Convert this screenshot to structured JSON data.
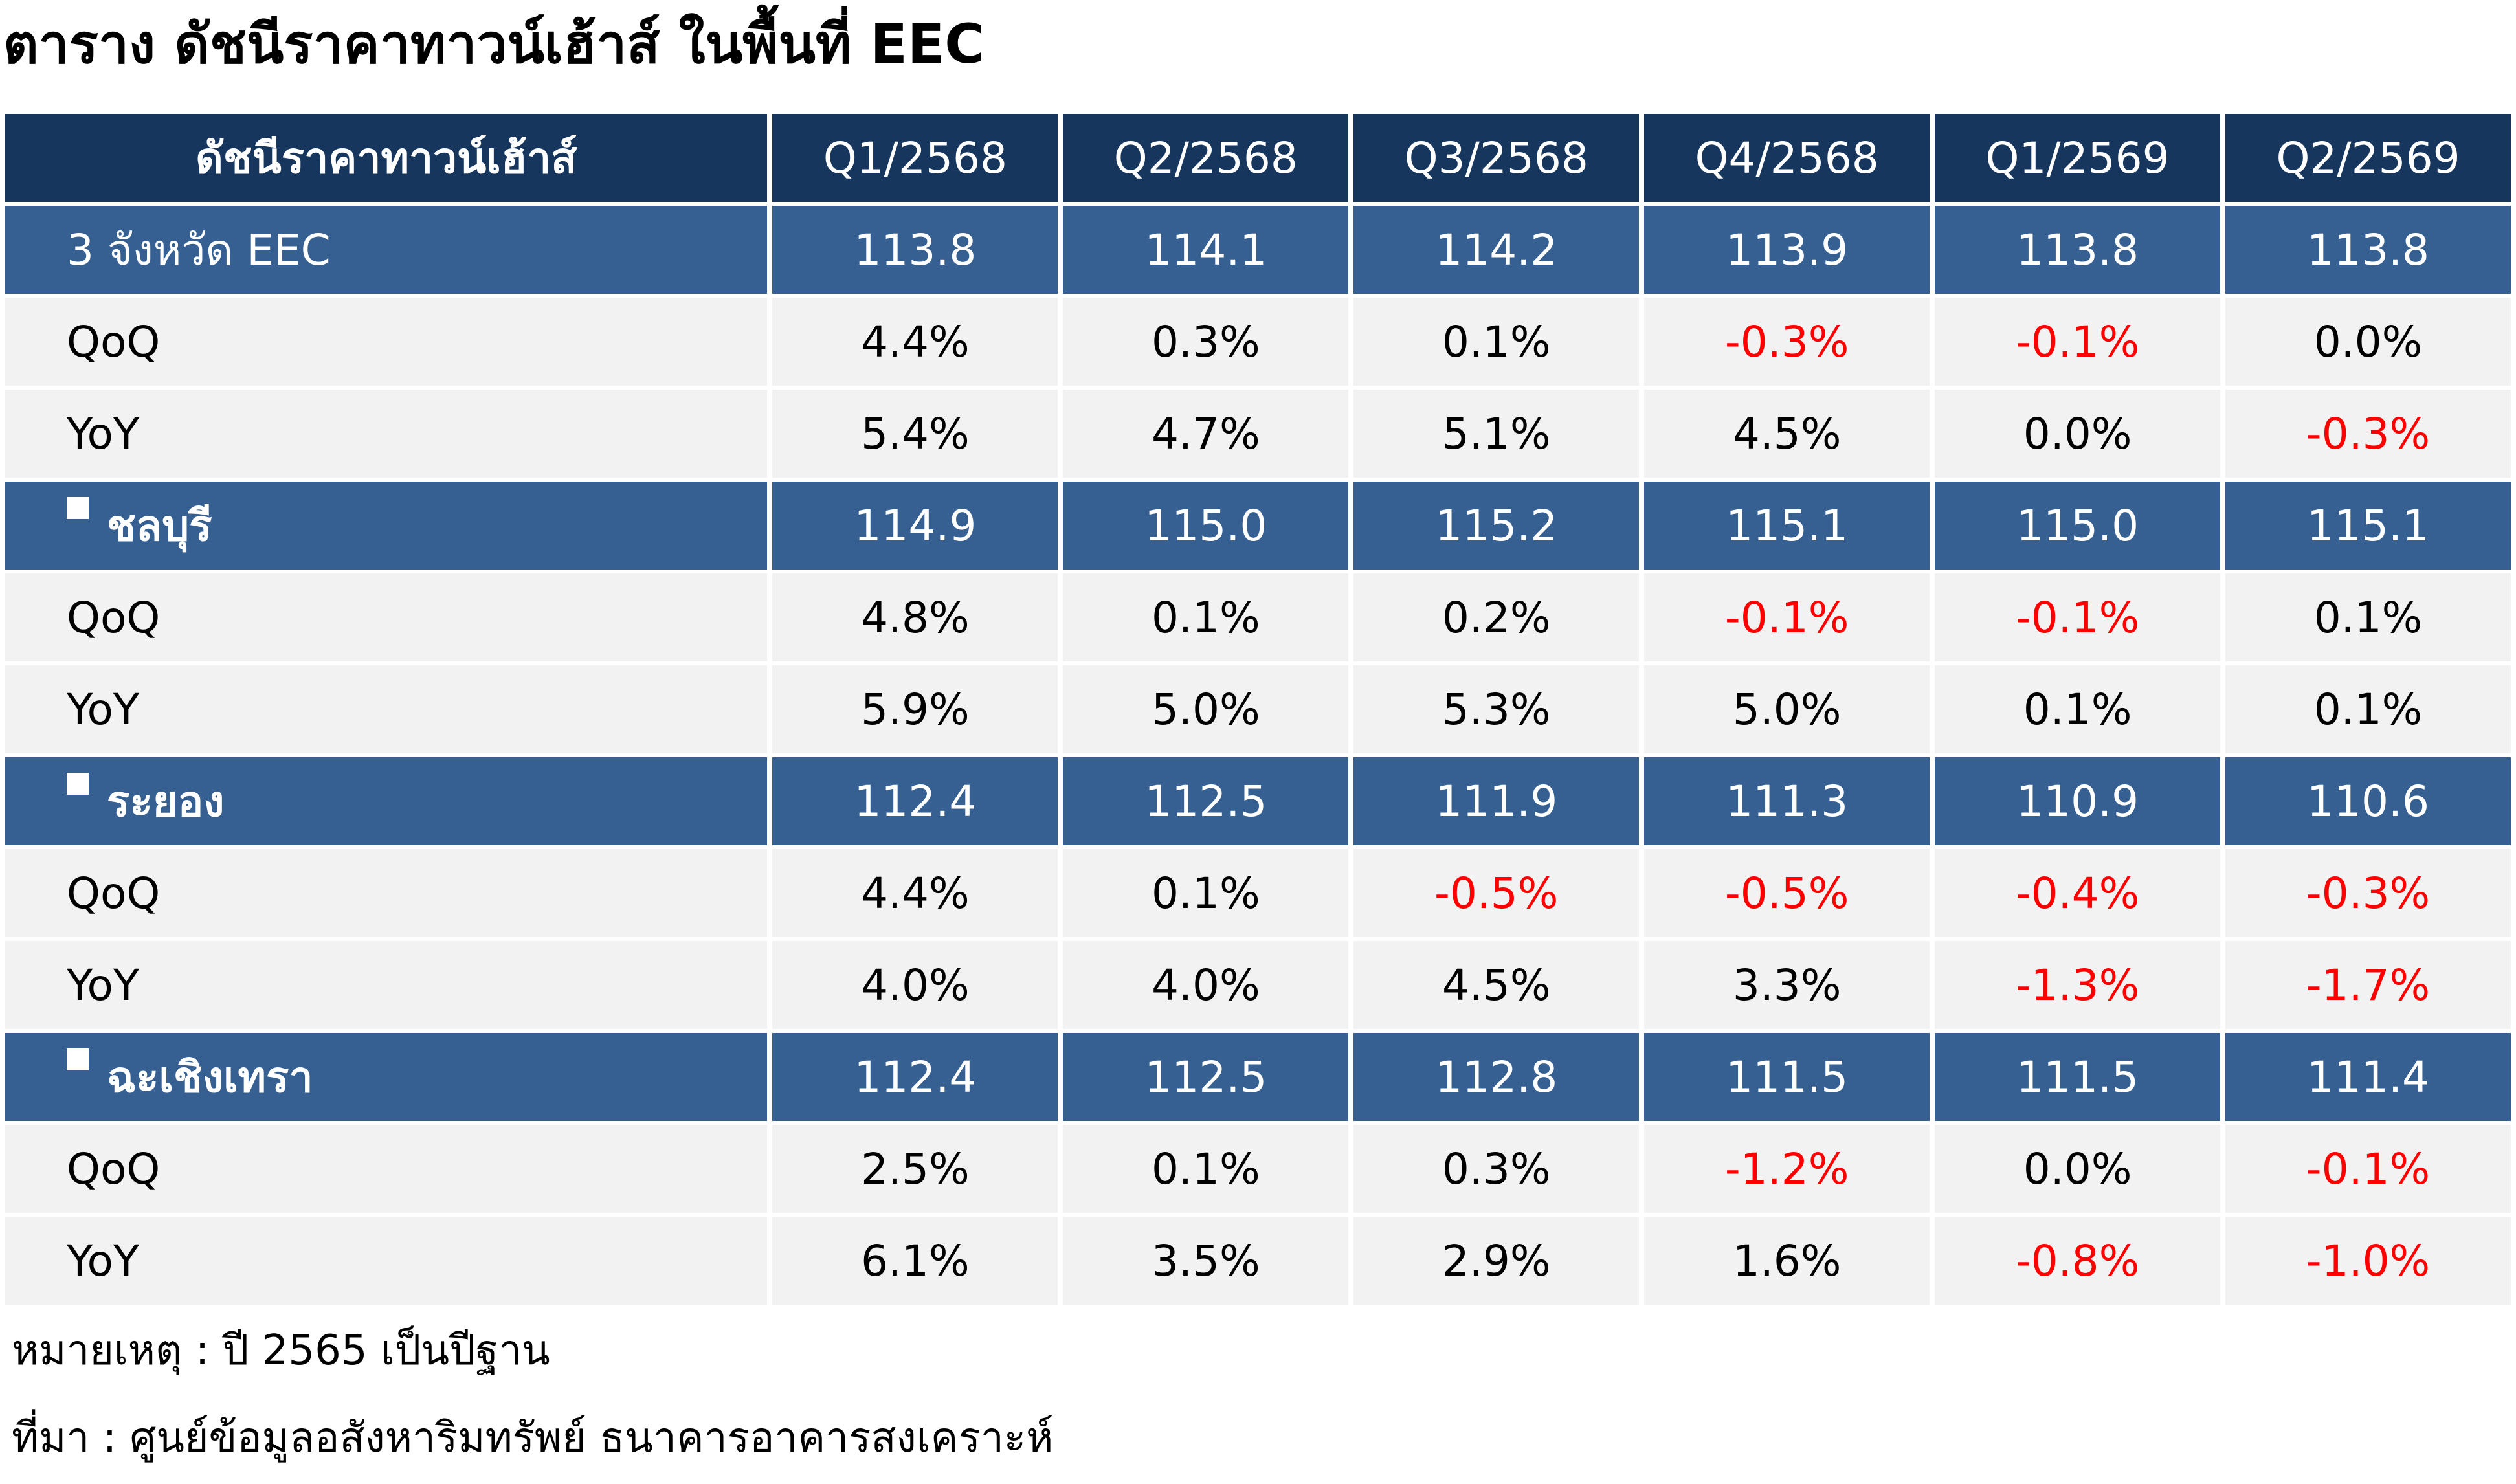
{
  "title": "ตาราง ดัชนีราคาทาวน์เฮ้าส์ ในพื้นที่ EEC",
  "table": {
    "header": [
      "ดัชนีราคาทาวน์เฮ้าส์",
      "Q1/2568",
      "Q2/2568",
      "Q3/2568",
      "Q4/2568",
      "Q1/2569",
      "Q2/2569"
    ],
    "rows": [
      {
        "type": "region",
        "label": "3 จังหวัด EEC",
        "values": [
          "113.8",
          "114.1",
          "114.2",
          "113.9",
          "113.8",
          "113.8"
        ]
      },
      {
        "type": "stat",
        "label": "QoQ",
        "values": [
          "4.4%",
          "0.3%",
          "0.1%",
          "-0.3%",
          "-0.1%",
          "0.0%"
        ]
      },
      {
        "type": "stat",
        "label": "YoY",
        "values": [
          "5.4%",
          "4.7%",
          "5.1%",
          "4.5%",
          "0.0%",
          "-0.3%"
        ]
      },
      {
        "type": "subregion",
        "label": "ชลบุรี",
        "values": [
          "114.9",
          "115.0",
          "115.2",
          "115.1",
          "115.0",
          "115.1"
        ]
      },
      {
        "type": "stat",
        "label": "QoQ",
        "values": [
          "4.8%",
          "0.1%",
          "0.2%",
          "-0.1%",
          "-0.1%",
          "0.1%"
        ]
      },
      {
        "type": "stat",
        "label": "YoY",
        "values": [
          "5.9%",
          "5.0%",
          "5.3%",
          "5.0%",
          "0.1%",
          "0.1%"
        ]
      },
      {
        "type": "subregion",
        "label": "ระยอง",
        "values": [
          "112.4",
          "112.5",
          "111.9",
          "111.3",
          "110.9",
          "110.6"
        ]
      },
      {
        "type": "stat",
        "label": "QoQ",
        "values": [
          "4.4%",
          "0.1%",
          "-0.5%",
          "-0.5%",
          "-0.4%",
          "-0.3%"
        ]
      },
      {
        "type": "stat",
        "label": "YoY",
        "values": [
          "4.0%",
          "4.0%",
          "4.5%",
          "3.3%",
          "-1.3%",
          "-1.7%"
        ]
      },
      {
        "type": "subregion",
        "label": "ฉะเชิงเทรา",
        "values": [
          "112.4",
          "112.5",
          "112.8",
          "111.5",
          "111.5",
          "111.4"
        ]
      },
      {
        "type": "stat",
        "label": "QoQ",
        "values": [
          "2.5%",
          "0.1%",
          "0.3%",
          "-1.2%",
          "0.0%",
          "-0.1%"
        ]
      },
      {
        "type": "stat",
        "label": "YoY",
        "values": [
          "6.1%",
          "3.5%",
          "2.9%",
          "1.6%",
          "-0.8%",
          "-1.0%"
        ]
      }
    ]
  },
  "colors": {
    "header_bg": "#17365d",
    "region_bg": "#366092",
    "stat_bg": "#f2f2f2",
    "negative_text": "#ff0000"
  },
  "footnotes": {
    "note": "หมายเหตุ : ปี 2565 เป็นปีฐาน",
    "source": "ที่มา : ศูนย์ข้อมูลอสังหาริมทรัพย์ ธนาคารอาคารสงเคราะห์"
  }
}
